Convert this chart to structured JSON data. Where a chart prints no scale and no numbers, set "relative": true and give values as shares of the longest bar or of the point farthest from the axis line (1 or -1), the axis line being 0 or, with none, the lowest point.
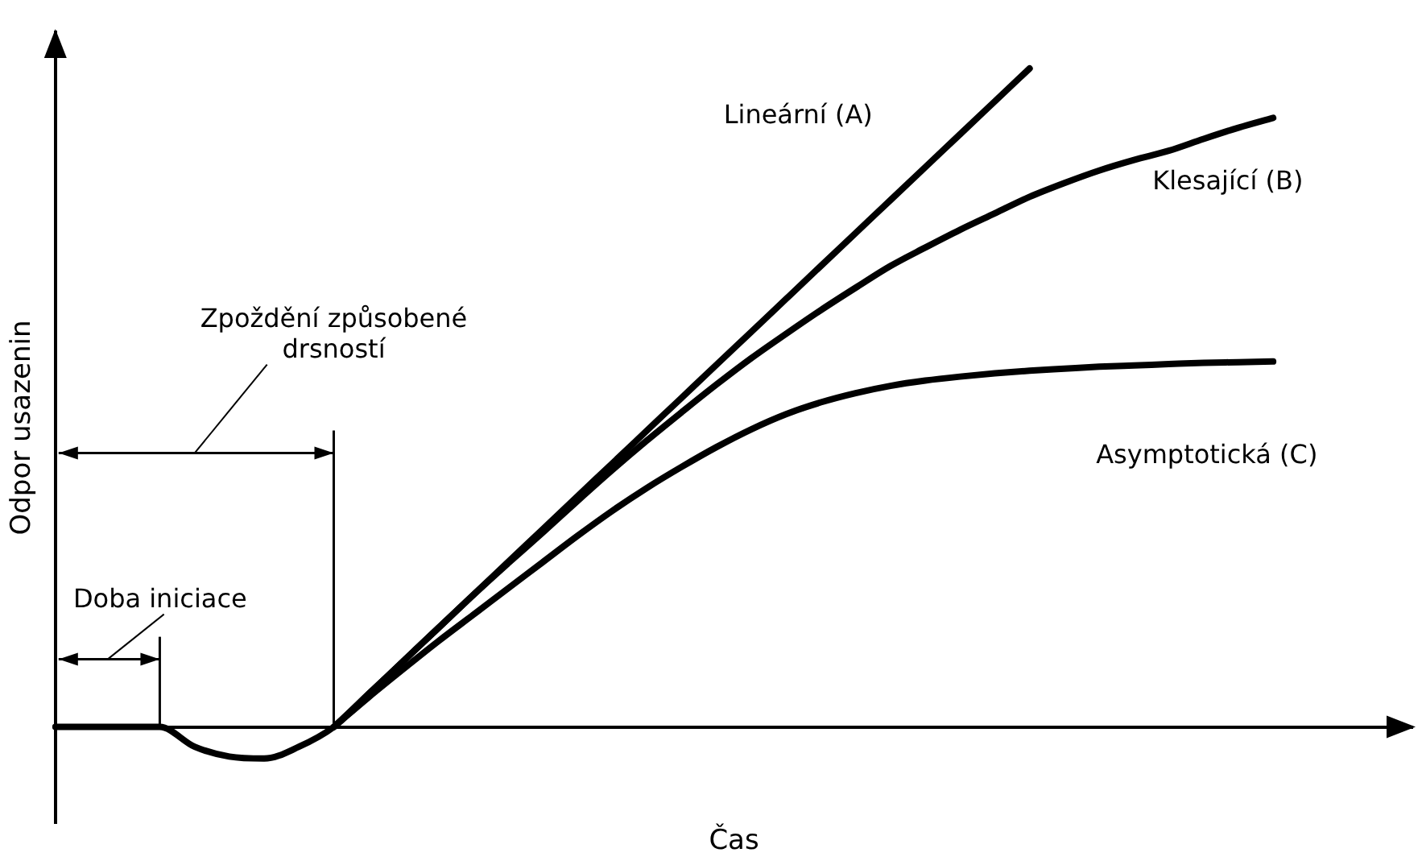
{
  "chart_data": {
    "type": "line",
    "relative": true,
    "xlabel": "Čas",
    "ylabel": "Odpor usazenin",
    "grid": false,
    "legend": false,
    "marker": "none",
    "line_style": "solid",
    "categories": [
      null,
      null,
      null,
      null,
      null,
      null,
      null,
      null,
      null,
      null,
      null,
      null,
      null,
      null,
      null,
      null,
      null,
      null,
      null,
      null,
      null,
      null,
      null,
      null,
      null,
      null,
      null,
      null,
      null,
      null,
      null,
      null,
      null,
      null,
      null,
      null,
      null,
      null,
      null,
      null
    ],
    "series": [
      {
        "name": "Lineární (A)",
        "color": "#000000",
        "values": [
          0,
          0,
          0,
          0,
          -0.03,
          -0.045,
          -0.048,
          -0.03,
          0,
          0.05,
          0.1,
          0.15,
          0.2,
          0.25,
          0.3,
          0.35,
          0.4,
          0.45,
          0.5,
          0.55,
          0.6,
          0.65,
          0.7,
          0.75,
          0.8,
          0.85,
          0.9,
          0.95,
          1,
          null,
          null,
          null,
          null,
          null,
          null,
          null,
          null,
          null,
          null,
          null
        ]
      },
      {
        "name": "Klesající (B)",
        "color": "#000000",
        "values": [
          null,
          null,
          null,
          null,
          null,
          null,
          null,
          null,
          0,
          0.05,
          0.1,
          0.15,
          0.2,
          0.248,
          0.295,
          0.343,
          0.39,
          0.435,
          0.478,
          0.52,
          0.56,
          0.597,
          0.633,
          0.667,
          0.7,
          0.728,
          0.755,
          0.78,
          0.805,
          0.826,
          0.845,
          0.861,
          0.875,
          0.893,
          0.91,
          0.925,
          null,
          null,
          null,
          null
        ]
      },
      {
        "name": "Asymptotická (C)",
        "color": "#000000",
        "values": [
          null,
          null,
          null,
          null,
          null,
          null,
          null,
          null,
          0,
          0.045,
          0.088,
          0.13,
          0.17,
          0.21,
          0.25,
          0.29,
          0.328,
          0.363,
          0.395,
          0.425,
          0.452,
          0.475,
          0.493,
          0.507,
          0.518,
          0.526,
          0.532,
          0.537,
          0.541,
          0.544,
          0.547,
          0.549,
          0.551,
          0.553,
          0.554,
          0.555,
          null,
          null,
          null,
          null
        ]
      }
    ],
    "annotations": [
      "Zpoždění způsobené drsností",
      "Doba iniciace"
    ]
  }
}
